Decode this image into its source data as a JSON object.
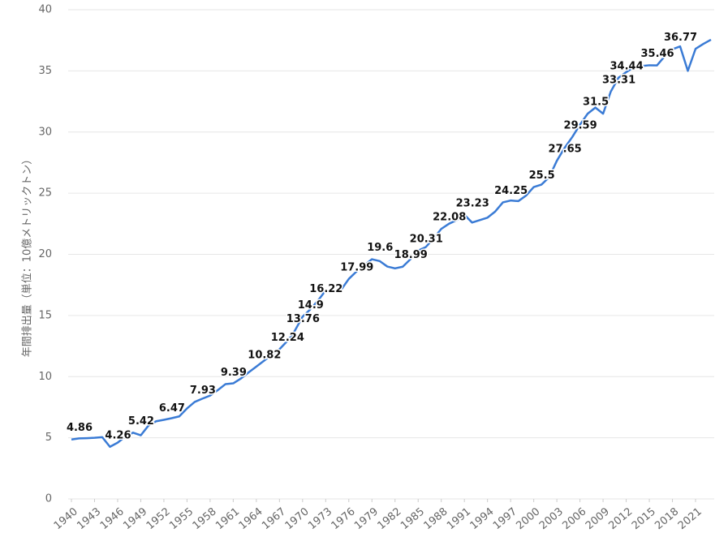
{
  "chart_data": {
    "type": "line",
    "y_label": "年間排出量（単位：10億メトリックトン）",
    "x": [
      1940,
      1941,
      1942,
      1943,
      1944,
      1945,
      1946,
      1947,
      1948,
      1949,
      1950,
      1951,
      1952,
      1953,
      1954,
      1955,
      1956,
      1957,
      1958,
      1959,
      1960,
      1961,
      1962,
      1963,
      1964,
      1965,
      1966,
      1967,
      1968,
      1969,
      1970,
      1971,
      1972,
      1973,
      1974,
      1975,
      1976,
      1977,
      1978,
      1979,
      1980,
      1981,
      1982,
      1983,
      1984,
      1985,
      1986,
      1987,
      1988,
      1989,
      1990,
      1991,
      1992,
      1993,
      1994,
      1995,
      1996,
      1997,
      1998,
      1999,
      2000,
      2001,
      2002,
      2003,
      2004,
      2005,
      2006,
      2007,
      2008,
      2009,
      2010,
      2011,
      2012,
      2013,
      2014,
      2015,
      2016,
      2017,
      2018,
      2019,
      2020,
      2021,
      2022,
      2023
    ],
    "series": [
      {
        "color": "#3a7bd5",
        "values": [
          4.86,
          4.95,
          4.97,
          5.0,
          5.05,
          4.26,
          4.6,
          5.1,
          5.42,
          5.2,
          6.0,
          6.35,
          6.47,
          6.6,
          6.75,
          7.4,
          7.93,
          8.2,
          8.45,
          8.9,
          9.39,
          9.45,
          9.85,
          10.35,
          10.82,
          11.3,
          11.8,
          12.24,
          12.9,
          13.76,
          14.9,
          15.5,
          16.22,
          17.05,
          17.0,
          17.1,
          17.99,
          18.6,
          19.1,
          19.6,
          19.45,
          19.0,
          18.85,
          18.99,
          19.6,
          20.31,
          20.6,
          21.3,
          22.08,
          22.5,
          22.8,
          23.23,
          22.6,
          22.8,
          23.0,
          23.5,
          24.25,
          24.4,
          24.35,
          24.8,
          25.5,
          25.7,
          26.3,
          27.65,
          28.7,
          29.59,
          30.6,
          31.5,
          32.0,
          31.5,
          33.31,
          34.44,
          34.9,
          35.3,
          35.4,
          35.46,
          35.45,
          36.2,
          36.77,
          37.0,
          35.0,
          36.8,
          37.2,
          37.55
        ],
        "value_labels": [
          "4.86",
          null,
          null,
          null,
          null,
          "4.26",
          null,
          null,
          "5.42",
          null,
          null,
          null,
          "6.47",
          null,
          null,
          null,
          "7.93",
          null,
          null,
          null,
          "9.39",
          null,
          null,
          null,
          "10.82",
          null,
          null,
          "12.24",
          null,
          "13.76",
          "14.9",
          null,
          "16.22",
          null,
          null,
          null,
          "17.99",
          null,
          null,
          "19.6",
          null,
          null,
          null,
          "18.99",
          null,
          "20.31",
          null,
          null,
          "22.08",
          null,
          null,
          "23.23",
          null,
          null,
          null,
          null,
          "24.25",
          null,
          null,
          null,
          "25.5",
          null,
          null,
          "27.65",
          null,
          "29.59",
          null,
          "31.5",
          null,
          null,
          "33.31",
          "34.44",
          null,
          null,
          null,
          "35.46",
          null,
          null,
          "36.77",
          null,
          null,
          null,
          null,
          null
        ]
      }
    ],
    "xlim": [
      1940,
      2023
    ],
    "xticks": [
      1940,
      1943,
      1946,
      1949,
      1952,
      1955,
      1958,
      1961,
      1964,
      1967,
      1970,
      1973,
      1976,
      1979,
      1982,
      1985,
      1988,
      1991,
      1994,
      1997,
      2000,
      2003,
      2006,
      2009,
      2012,
      2015,
      2018,
      2021
    ],
    "ylim": [
      0,
      40
    ],
    "yticks": [
      0,
      5,
      10,
      15,
      20,
      25,
      30,
      35,
      40
    ],
    "grid": true
  }
}
